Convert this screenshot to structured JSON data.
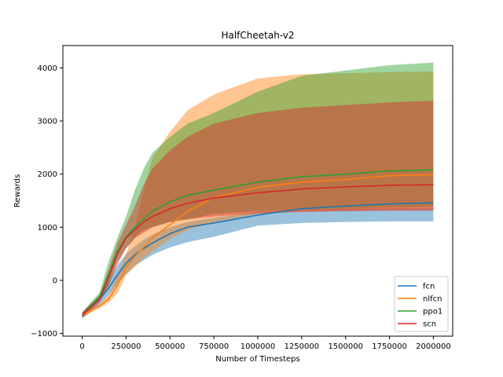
{
  "chart_data": {
    "type": "line",
    "title": "HalfCheetah-v2",
    "xlabel": "Number of Timesteps",
    "ylabel": "Rewards",
    "xlim": [
      -110000,
      2110000
    ],
    "ylim": [
      -1050,
      4420
    ],
    "xticks": [
      0,
      250000,
      500000,
      750000,
      1000000,
      1250000,
      1500000,
      1750000,
      2000000
    ],
    "yticks": [
      -1000,
      0,
      1000,
      2000,
      3000,
      4000
    ],
    "grid": false,
    "legend_position": "lower-right",
    "x": [
      0,
      100000,
      150000,
      200000,
      250000,
      300000,
      350000,
      400000,
      500000,
      600000,
      750000,
      1000000,
      1250000,
      1500000,
      1750000,
      2000000
    ],
    "series": [
      {
        "name": "fcn",
        "color": "#1f77b4",
        "mean": [
          -650,
          -350,
          -150,
          100,
          320,
          480,
          600,
          700,
          880,
          1000,
          1080,
          1230,
          1350,
          1400,
          1440,
          1460
        ],
        "lower": [
          -720,
          -450,
          -280,
          -80,
          120,
          280,
          380,
          480,
          620,
          720,
          820,
          1030,
          1080,
          1100,
          1110,
          1110
        ],
        "upper": [
          -600,
          -280,
          -30,
          280,
          500,
          640,
          760,
          860,
          1000,
          1100,
          1180,
          1290,
          1330,
          1350,
          1360,
          1360
        ]
      },
      {
        "name": "nlfcn",
        "color": "#ff7f0e",
        "mean": [
          -650,
          -480,
          -350,
          -100,
          250,
          450,
          620,
          800,
          1050,
          1300,
          1560,
          1750,
          1850,
          1900,
          1970,
          1990
        ],
        "lower": [
          -700,
          -520,
          -420,
          -250,
          100,
          250,
          420,
          550,
          780,
          950,
          1100,
          1250,
          1290,
          1310,
          1320,
          1330
        ],
        "upper": [
          -620,
          -440,
          -280,
          100,
          500,
          1000,
          1700,
          2300,
          2800,
          3200,
          3500,
          3800,
          3880,
          3900,
          3920,
          3930
        ]
      },
      {
        "name": "ppo1",
        "color": "#2ca02c",
        "mean": [
          -650,
          -300,
          100,
          550,
          820,
          1000,
          1150,
          1300,
          1480,
          1600,
          1700,
          1850,
          1950,
          2000,
          2060,
          2080
        ],
        "lower": [
          -700,
          -380,
          -100,
          350,
          600,
          800,
          950,
          1000,
          1100,
          1150,
          1250,
          1300,
          1330,
          1350,
          1370,
          1380
        ],
        "upper": [
          -600,
          -220,
          350,
          800,
          1200,
          1700,
          2100,
          2400,
          2700,
          2950,
          3150,
          3550,
          3850,
          3950,
          4050,
          4100
        ]
      },
      {
        "name": "scn",
        "color": "#d62728",
        "mean": [
          -650,
          -350,
          50,
          500,
          800,
          950,
          1100,
          1200,
          1350,
          1450,
          1550,
          1650,
          1720,
          1760,
          1790,
          1800
        ],
        "lower": [
          -700,
          -420,
          -100,
          300,
          600,
          800,
          900,
          1000,
          1100,
          1150,
          1200,
          1260,
          1290,
          1300,
          1310,
          1310
        ],
        "upper": [
          -600,
          -280,
          200,
          700,
          1050,
          1400,
          1800,
          2100,
          2450,
          2700,
          2950,
          3150,
          3250,
          3300,
          3350,
          3380
        ]
      }
    ]
  }
}
